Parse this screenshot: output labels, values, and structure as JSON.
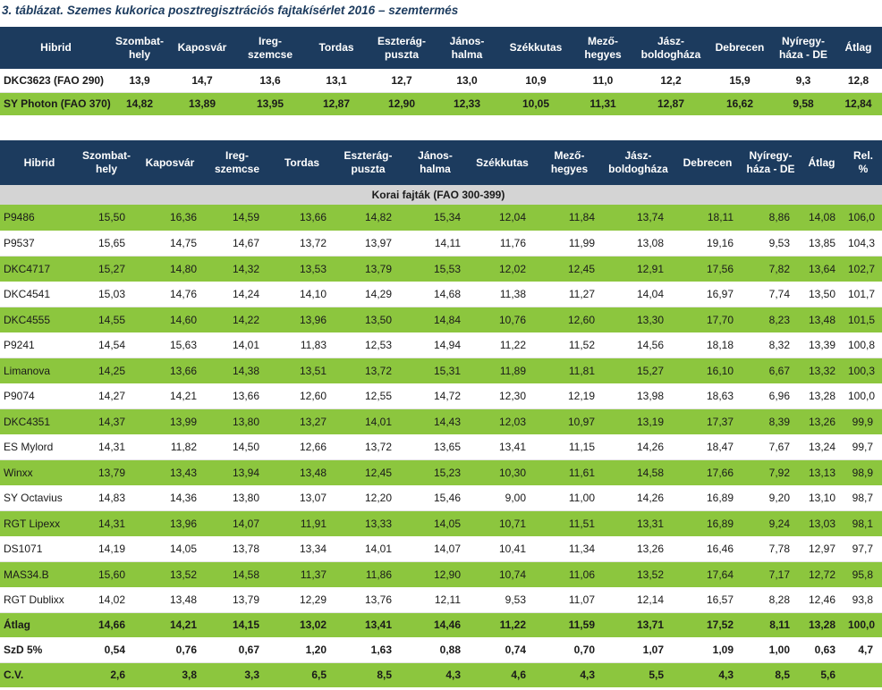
{
  "title": "3. táblázat. Szemes kukorica posztregisztrációs fajtakísérlet 2016 – szemtermés",
  "table1": {
    "header": [
      "Hibrid",
      "Szombat-\nhely",
      "Kaposvár",
      "Ireg-\nszemcse",
      "Tordas",
      "Eszterág-\npuszta",
      "János-\nhalma",
      "Székkutas",
      "Mező-\nhegyes",
      "Jász-\nboldogháza",
      "Debrecen",
      "Nyíregy-\nháza - DE",
      "Átlag"
    ],
    "rows": [
      [
        "DKC3623 (FAO 290)",
        "13,9",
        "14,7",
        "13,6",
        "13,1",
        "12,7",
        "13,0",
        "10,9",
        "11,0",
        "12,2",
        "15,9",
        "9,3",
        "12,8"
      ],
      [
        "SY Photon (FAO 370)",
        "14,82",
        "13,89",
        "13,95",
        "12,87",
        "12,90",
        "12,33",
        "10,05",
        "11,31",
        "12,87",
        "16,62",
        "9,58",
        "12,84"
      ]
    ]
  },
  "table2": {
    "header": [
      "Hibrid",
      "Szombat-\nhely",
      "Kaposvár",
      "Ireg-\nszemcse",
      "Tordas",
      "Eszterág-\npuszta",
      "János-\nhalma",
      "Székkutas",
      "Mező-\nhegyes",
      "Jász-\nboldogháza",
      "Debrecen",
      "Nyíregy-\nháza - DE",
      "Átlag",
      "Rel.\n%"
    ],
    "section": "Korai fajták (FAO 300-399)",
    "rows": [
      [
        "P9486",
        "15,50",
        "16,36",
        "14,59",
        "13,66",
        "14,82",
        "15,34",
        "12,04",
        "11,84",
        "13,74",
        "18,11",
        "8,86",
        "14,08",
        "106,0"
      ],
      [
        "P9537",
        "15,65",
        "14,75",
        "14,67",
        "13,72",
        "13,97",
        "14,11",
        "11,76",
        "11,99",
        "13,08",
        "19,16",
        "9,53",
        "13,85",
        "104,3"
      ],
      [
        "DKC4717",
        "15,27",
        "14,80",
        "14,32",
        "13,53",
        "13,79",
        "15,53",
        "12,02",
        "12,45",
        "12,91",
        "17,56",
        "7,82",
        "13,64",
        "102,7"
      ],
      [
        "DKC4541",
        "15,03",
        "14,76",
        "14,24",
        "14,10",
        "14,29",
        "14,68",
        "11,38",
        "11,27",
        "14,04",
        "16,97",
        "7,74",
        "13,50",
        "101,7"
      ],
      [
        "DKC4555",
        "14,55",
        "14,60",
        "14,22",
        "13,96",
        "13,50",
        "14,84",
        "10,76",
        "12,60",
        "13,30",
        "17,70",
        "8,23",
        "13,48",
        "101,5"
      ],
      [
        "P9241",
        "14,54",
        "15,63",
        "14,01",
        "11,83",
        "12,53",
        "14,94",
        "11,22",
        "11,52",
        "14,56",
        "18,18",
        "8,32",
        "13,39",
        "100,8"
      ],
      [
        "Limanova",
        "14,25",
        "13,66",
        "14,38",
        "13,51",
        "13,72",
        "15,31",
        "11,89",
        "11,81",
        "15,27",
        "16,10",
        "6,67",
        "13,32",
        "100,3"
      ],
      [
        "P9074",
        "14,27",
        "14,21",
        "13,66",
        "12,60",
        "12,55",
        "14,72",
        "12,30",
        "12,19",
        "13,98",
        "18,63",
        "6,96",
        "13,28",
        "100,0"
      ],
      [
        "DKC4351",
        "14,37",
        "13,99",
        "13,80",
        "13,27",
        "14,01",
        "14,43",
        "12,03",
        "10,97",
        "13,19",
        "17,37",
        "8,39",
        "13,26",
        "99,9"
      ],
      [
        "ES Mylord",
        "14,31",
        "11,82",
        "14,50",
        "12,66",
        "13,72",
        "13,65",
        "13,41",
        "11,15",
        "14,26",
        "18,47",
        "7,67",
        "13,24",
        "99,7"
      ],
      [
        "Winxx",
        "13,79",
        "13,43",
        "13,94",
        "13,48",
        "12,45",
        "15,23",
        "10,30",
        "11,61",
        "14,58",
        "17,66",
        "7,92",
        "13,13",
        "98,9"
      ],
      [
        "SY Octavius",
        "14,83",
        "14,36",
        "13,80",
        "13,07",
        "12,20",
        "15,46",
        "9,00",
        "11,00",
        "14,26",
        "16,89",
        "9,20",
        "13,10",
        "98,7"
      ],
      [
        "RGT Lipexx",
        "14,31",
        "13,96",
        "14,07",
        "11,91",
        "13,33",
        "14,05",
        "10,71",
        "11,51",
        "13,31",
        "16,89",
        "9,24",
        "13,03",
        "98,1"
      ],
      [
        "DS1071",
        "14,19",
        "14,05",
        "13,78",
        "13,34",
        "14,01",
        "14,07",
        "10,41",
        "11,34",
        "13,26",
        "16,46",
        "7,78",
        "12,97",
        "97,7"
      ],
      [
        "MAS34.B",
        "15,60",
        "13,52",
        "14,58",
        "11,37",
        "11,86",
        "12,90",
        "10,74",
        "11,06",
        "13,52",
        "17,64",
        "7,17",
        "12,72",
        "95,8"
      ],
      [
        "RGT Dublixx",
        "14,02",
        "13,48",
        "13,79",
        "12,29",
        "13,76",
        "12,11",
        "9,53",
        "11,07",
        "12,14",
        "16,57",
        "8,28",
        "12,46",
        "93,8"
      ]
    ],
    "summary": [
      [
        "Átlag",
        "14,66",
        "14,21",
        "14,15",
        "13,02",
        "13,41",
        "14,46",
        "11,22",
        "11,59",
        "13,71",
        "17,52",
        "8,11",
        "13,28",
        "100,0"
      ],
      [
        "SzD 5%",
        "0,54",
        "0,76",
        "0,67",
        "1,20",
        "1,63",
        "0,88",
        "0,74",
        "0,70",
        "1,07",
        "1,09",
        "1,00",
        "0,63",
        "4,7"
      ],
      [
        "C.V.",
        "2,6",
        "3,8",
        "3,3",
        "6,5",
        "8,5",
        "4,3",
        "4,6",
        "4,3",
        "5,5",
        "4,3",
        "8,5",
        "5,6"
      ]
    ]
  }
}
